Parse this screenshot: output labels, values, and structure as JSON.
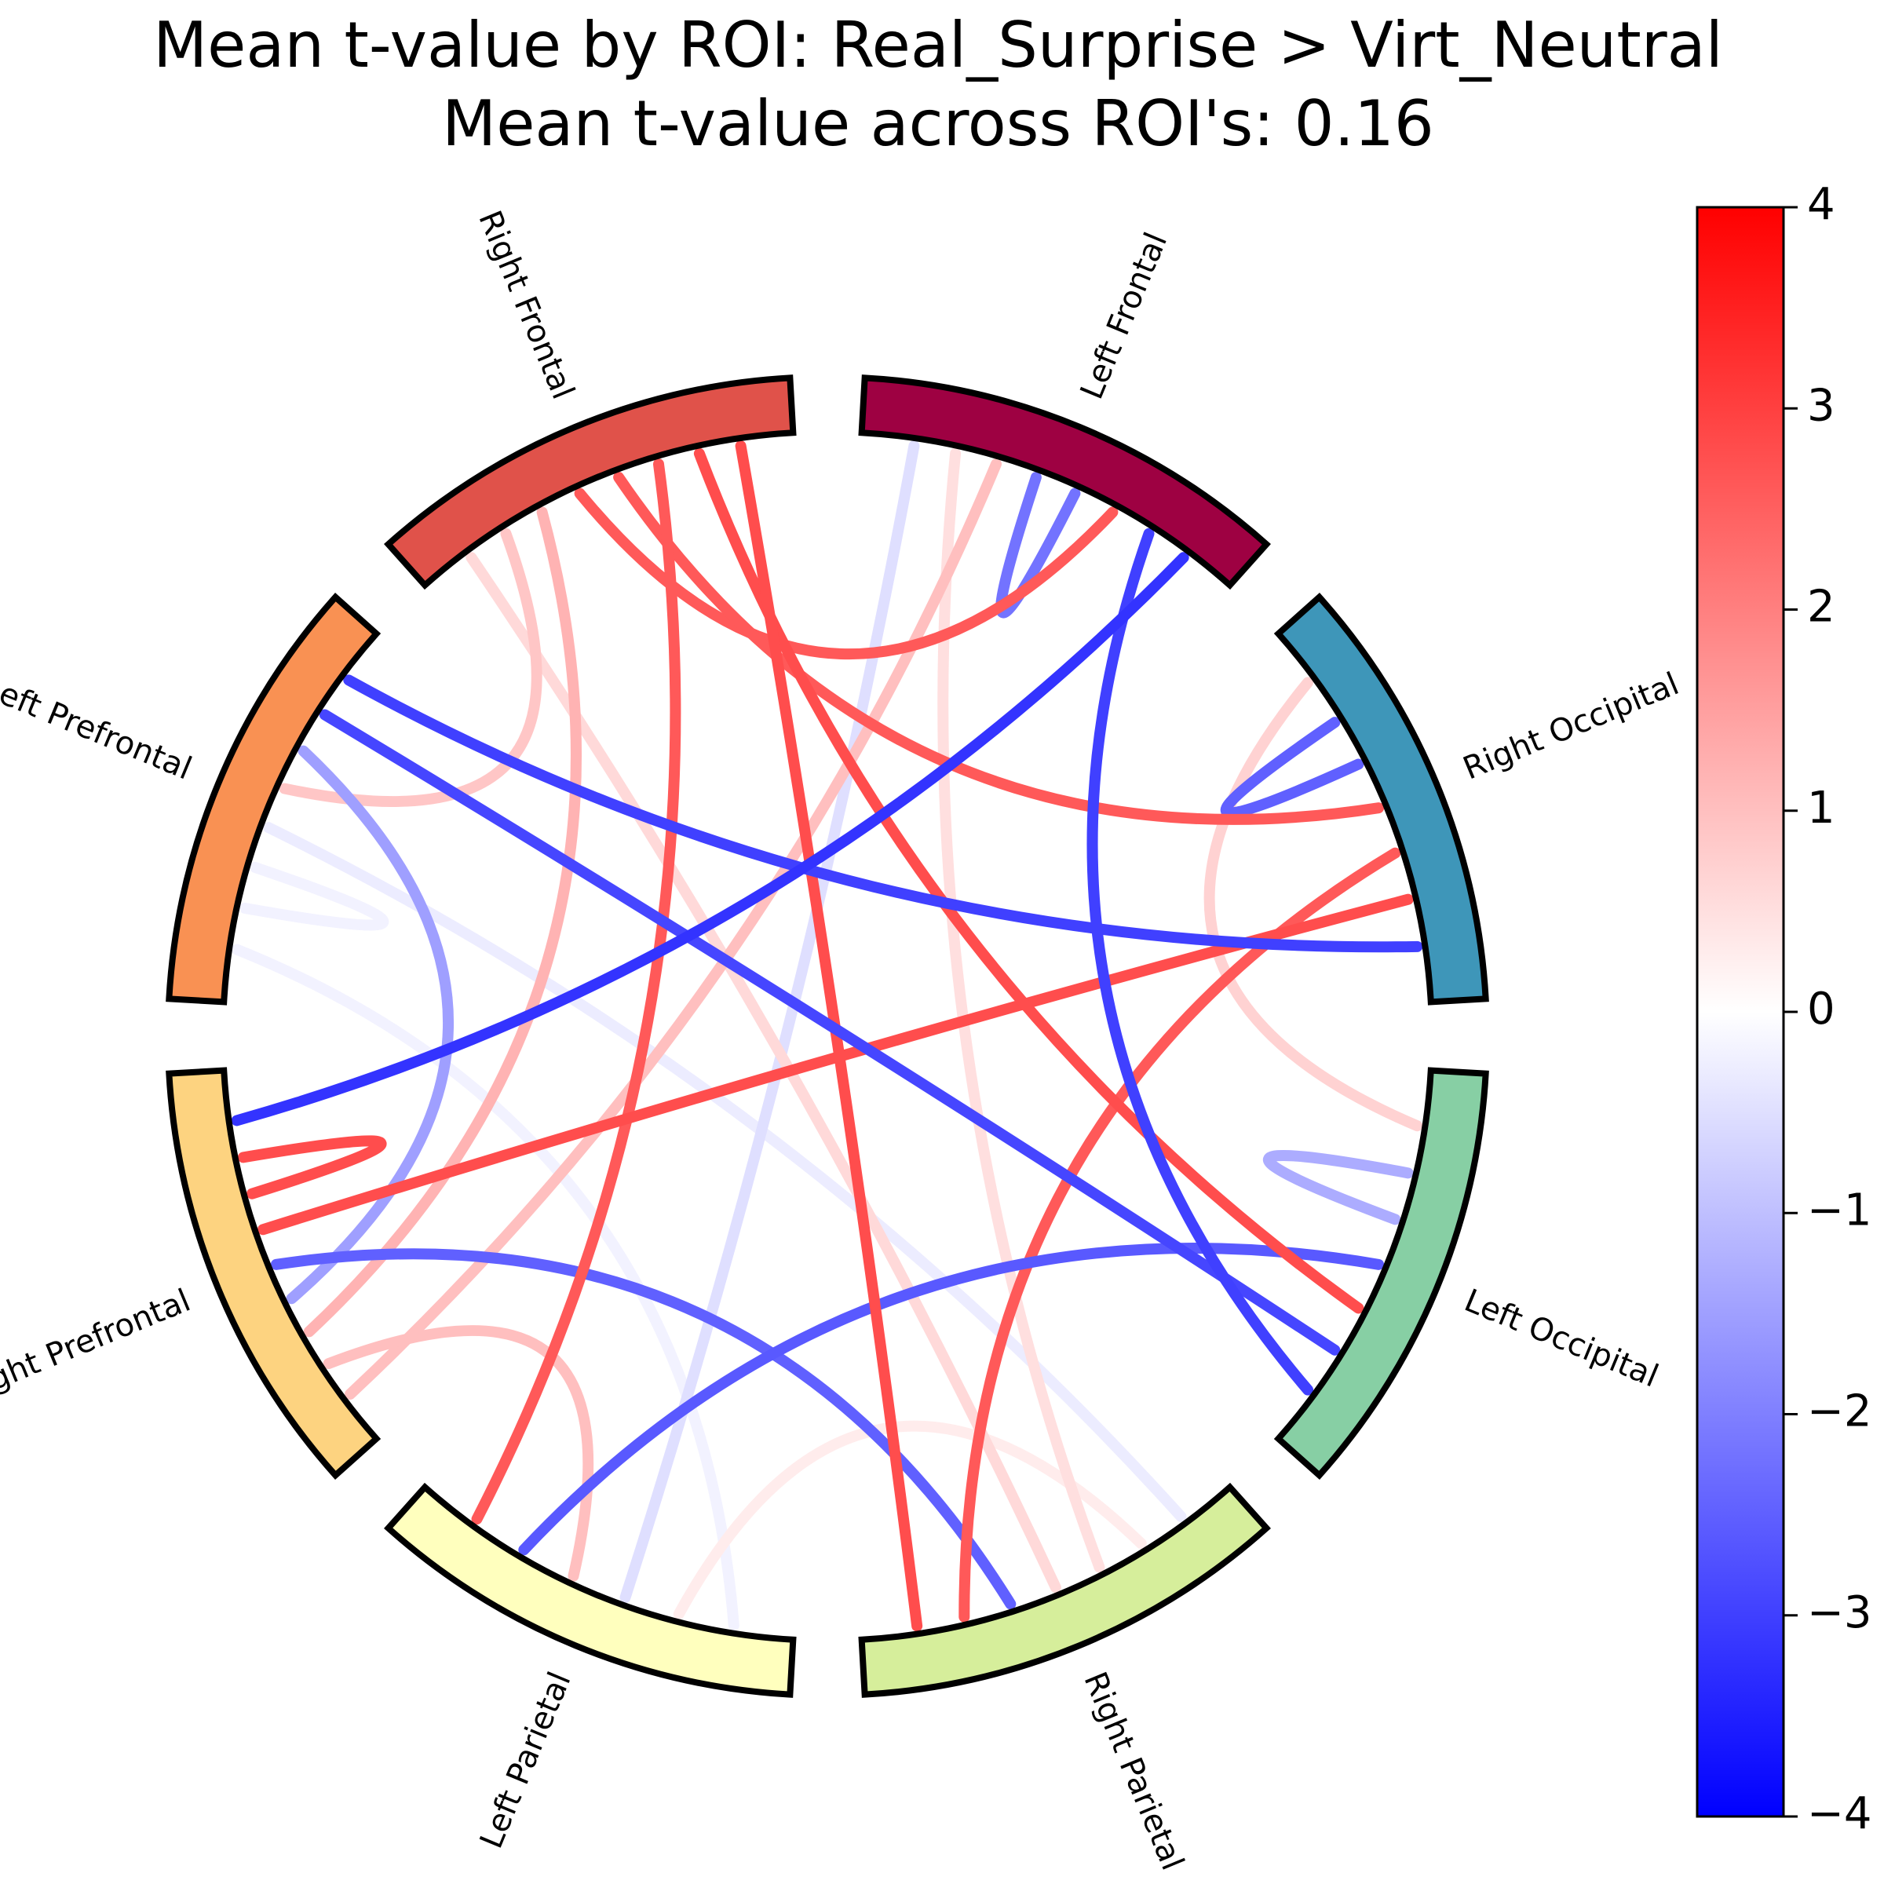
{
  "chart_data": {
    "type": "chord",
    "title": "Mean t-value by ROI: Real_Surprise > Virt_Neutral",
    "subtitle": "Mean t-value across ROI's: 0.16",
    "nodes": [
      {
        "name": "Left Frontal",
        "color": "#9e0142"
      },
      {
        "name": "Right Occipital",
        "color": "#3e96b9"
      },
      {
        "name": "Left Occipital",
        "color": "#87cfa4"
      },
      {
        "name": "Right Parietal",
        "color": "#d6ee9b"
      },
      {
        "name": "Left Parietal",
        "color": "#ffffbe"
      },
      {
        "name": "Right Prefrontal",
        "color": "#fdd380"
      },
      {
        "name": "Left Prefrontal",
        "color": "#f99153"
      },
      {
        "name": "Right Frontal",
        "color": "#e0524a"
      }
    ],
    "links": [
      {
        "source": "Left Frontal",
        "target": "Right Frontal",
        "value": 2.6
      },
      {
        "source": "Left Frontal",
        "target": "Right Prefrontal",
        "value": 1.0
      },
      {
        "source": "Left Frontal",
        "target": "Left Parietal",
        "value": -0.5
      },
      {
        "source": "Left Frontal",
        "target": "Right Prefrontal",
        "value": -3.2
      },
      {
        "source": "Left Frontal",
        "target": "Left Occipital",
        "value": -3.0
      },
      {
        "source": "Left Frontal",
        "target": "Left Frontal",
        "value": -2.2
      },
      {
        "source": "Left Frontal",
        "target": "Right Parietal",
        "value": 0.5
      },
      {
        "source": "Right Occipital",
        "target": "Right Frontal",
        "value": 2.6
      },
      {
        "source": "Right Occipital",
        "target": "Left Prefrontal",
        "value": -3.0
      },
      {
        "source": "Right Occipital",
        "target": "Right Prefrontal",
        "value": 2.8
      },
      {
        "source": "Right Occipital",
        "target": "Right Parietal",
        "value": 2.6
      },
      {
        "source": "Right Occipital",
        "target": "Right Occipital",
        "value": -2.5
      },
      {
        "source": "Right Occipital",
        "target": "Left Occipital",
        "value": 0.7
      },
      {
        "source": "Left Occipital",
        "target": "Right Frontal",
        "value": 2.8
      },
      {
        "source": "Left Occipital",
        "target": "Left Prefrontal",
        "value": -2.9
      },
      {
        "source": "Left Occipital",
        "target": "Left Parietal",
        "value": -2.6
      },
      {
        "source": "Left Occipital",
        "target": "Left Occipital",
        "value": -1.3
      },
      {
        "source": "Right Parietal",
        "target": "Right Frontal",
        "value": 2.8
      },
      {
        "source": "Right Parietal",
        "target": "Left Prefrontal",
        "value": -0.3
      },
      {
        "source": "Right Parietal",
        "target": "Right Prefrontal",
        "value": -2.5
      },
      {
        "source": "Right Parietal",
        "target": "Left Parietal",
        "value": 0.3
      },
      {
        "source": "Right Parietal",
        "target": "Right Frontal",
        "value": 0.6
      },
      {
        "source": "Left Parietal",
        "target": "Right Frontal",
        "value": 2.6
      },
      {
        "source": "Left Parietal",
        "target": "Left Prefrontal",
        "value": -0.2
      },
      {
        "source": "Left Parietal",
        "target": "Right Prefrontal",
        "value": 1.0
      },
      {
        "source": "Right Prefrontal",
        "target": "Left Prefrontal",
        "value": -1.5
      },
      {
        "source": "Right Prefrontal",
        "target": "Right Frontal",
        "value": 1.2
      },
      {
        "source": "Right Prefrontal",
        "target": "Right Prefrontal",
        "value": 2.8
      },
      {
        "source": "Left Prefrontal",
        "target": "Right Frontal",
        "value": 0.9
      },
      {
        "source": "Left Prefrontal",
        "target": "Left Prefrontal",
        "value": -0.2
      }
    ],
    "colorbar": {
      "colormap": "bwr",
      "range": [
        -4,
        4
      ],
      "ticks": [
        4,
        3,
        2,
        1,
        0,
        -1,
        -2,
        -3,
        -4
      ],
      "tick_labels": [
        "4",
        "3",
        "2",
        "1",
        "0",
        "−1",
        "−2",
        "−3",
        "−4"
      ]
    }
  }
}
